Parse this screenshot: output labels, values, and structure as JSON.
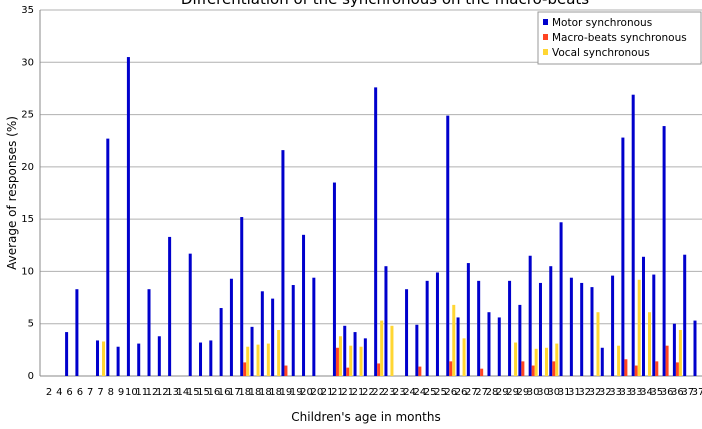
{
  "chart_data": {
    "type": "bar",
    "title": "Differentiation of the synchronous on the macro-beats",
    "x_label": "Children's age in months",
    "y_label": "Average of responses (%)",
    "categories": [
      "2",
      "4",
      "6",
      "6",
      "7",
      "7",
      "8",
      "9",
      "10",
      "11",
      "12",
      "12",
      "13",
      "14",
      "15",
      "15",
      "16",
      "16",
      "17",
      "18",
      "18",
      "18",
      "18",
      "19",
      "19",
      "20",
      "20",
      "21",
      "21",
      "21",
      "21",
      "22",
      "22",
      "23",
      "23",
      "24",
      "24",
      "25",
      "25",
      "26",
      "26",
      "27",
      "27",
      "28",
      "29",
      "29",
      "29",
      "30",
      "30",
      "30",
      "31",
      "31",
      "32",
      "32",
      "32",
      "33",
      "33",
      "33",
      "34",
      "35",
      "36",
      "36",
      "37",
      "37"
    ],
    "series": [
      {
        "name": "Motor synchronous",
        "color": "#0000cc",
        "values": [
          0,
          0,
          4.2,
          8.3,
          0,
          3.4,
          22.7,
          2.8,
          30.5,
          3.1,
          8.3,
          3.8,
          13.3,
          0,
          11.7,
          3.2,
          3.4,
          6.5,
          9.3,
          15.2,
          4.7,
          8.1,
          7.4,
          21.6,
          8.7,
          13.5,
          9.4,
          0,
          18.5,
          4.8,
          4.2,
          3.6,
          27.6,
          10.5,
          0,
          8.3,
          4.9,
          9.1,
          9.9,
          24.9,
          5.6,
          10.8,
          9.1,
          6.1,
          5.6,
          9.1,
          6.8,
          11.5,
          8.9,
          10.5,
          14.7,
          9.4,
          8.9,
          8.5,
          2.7,
          9.6,
          22.8,
          26.9,
          11.4,
          9.7,
          23.9,
          5.0,
          11.6,
          5.3
        ]
      },
      {
        "name": "Macro-beats synchronous",
        "color": "#ff4422",
        "values": [
          0,
          0,
          0,
          0,
          0,
          0,
          0,
          0,
          0,
          0,
          0,
          0,
          0,
          0,
          0,
          0,
          0,
          0,
          0,
          1.3,
          0,
          0,
          0,
          1.0,
          0,
          0,
          0,
          0,
          2.7,
          0.8,
          0,
          0,
          1.2,
          0,
          0,
          0,
          0.9,
          0,
          0,
          1.4,
          0,
          0,
          0.7,
          0,
          0,
          0,
          1.4,
          1.0,
          0,
          1.4,
          0,
          0,
          0,
          0,
          0,
          0,
          1.6,
          1.0,
          0,
          1.4,
          2.9,
          1.3,
          0,
          0
        ]
      },
      {
        "name": "Vocal synchronous",
        "color": "#ffd633",
        "values": [
          0,
          0,
          0,
          0,
          0,
          3.3,
          0,
          0,
          0,
          0,
          0,
          0,
          0,
          0,
          0,
          0,
          0,
          0,
          0,
          2.8,
          3.0,
          3.1,
          4.4,
          0,
          0,
          0,
          0,
          0,
          3.8,
          2.9,
          2.8,
          0,
          5.3,
          4.8,
          0,
          0,
          0,
          0,
          0,
          6.8,
          3.6,
          0,
          0,
          0,
          0,
          3.2,
          0,
          2.6,
          2.7,
          3.1,
          0,
          0,
          0,
          6.1,
          0,
          2.9,
          0,
          9.2,
          6.1,
          0,
          0,
          4.4,
          0,
          0
        ]
      }
    ],
    "ylim": [
      0,
      35
    ],
    "yticks": [
      0,
      5,
      10,
      15,
      20,
      25,
      30,
      35
    ],
    "grid": true,
    "legend": "top-right"
  }
}
